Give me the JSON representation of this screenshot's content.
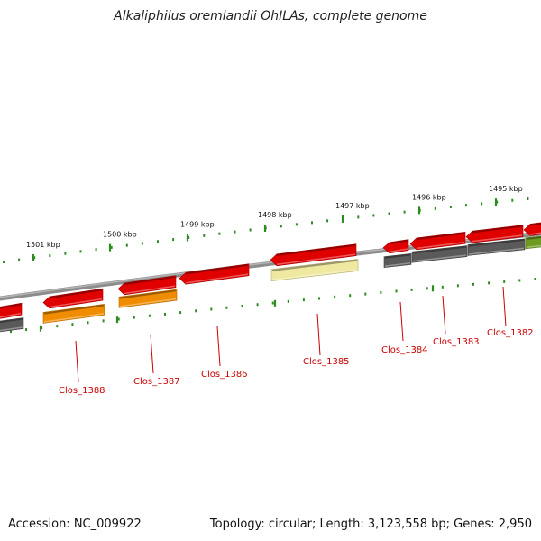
{
  "title": "Alkaliphilus oremlandii OhILAs, complete genome",
  "footer": {
    "accession": "Accession: NC_009922",
    "summary": "Topology: circular; Length: 3,123,558 bp; Genes: 2,950"
  },
  "colors": {
    "backbone": "#8c8c8c",
    "tick": "#2e8b22",
    "gene_red": "#e00000",
    "gene_gray": "#5a5a5a",
    "gene_orange": "#f08c00",
    "gene_yellow": "#efe8a0",
    "gene_green": "#6e9a22",
    "label": "#cc0000"
  },
  "ticks": [
    {
      "label": "1495 kbp"
    },
    {
      "label": "1496 kbp"
    },
    {
      "label": "1497 kbp"
    },
    {
      "label": "1498 kbp"
    },
    {
      "label": "1499 kbp"
    },
    {
      "label": "1500 kbp"
    },
    {
      "label": "1501 kbp"
    }
  ],
  "genes": [
    {
      "label": "Clos_1382"
    },
    {
      "label": "Clos_1383"
    },
    {
      "label": "Clos_1384"
    },
    {
      "label": "Clos_1385"
    },
    {
      "label": "Clos_1386"
    },
    {
      "label": "Clos_1387"
    },
    {
      "label": "Clos_1388"
    }
  ]
}
